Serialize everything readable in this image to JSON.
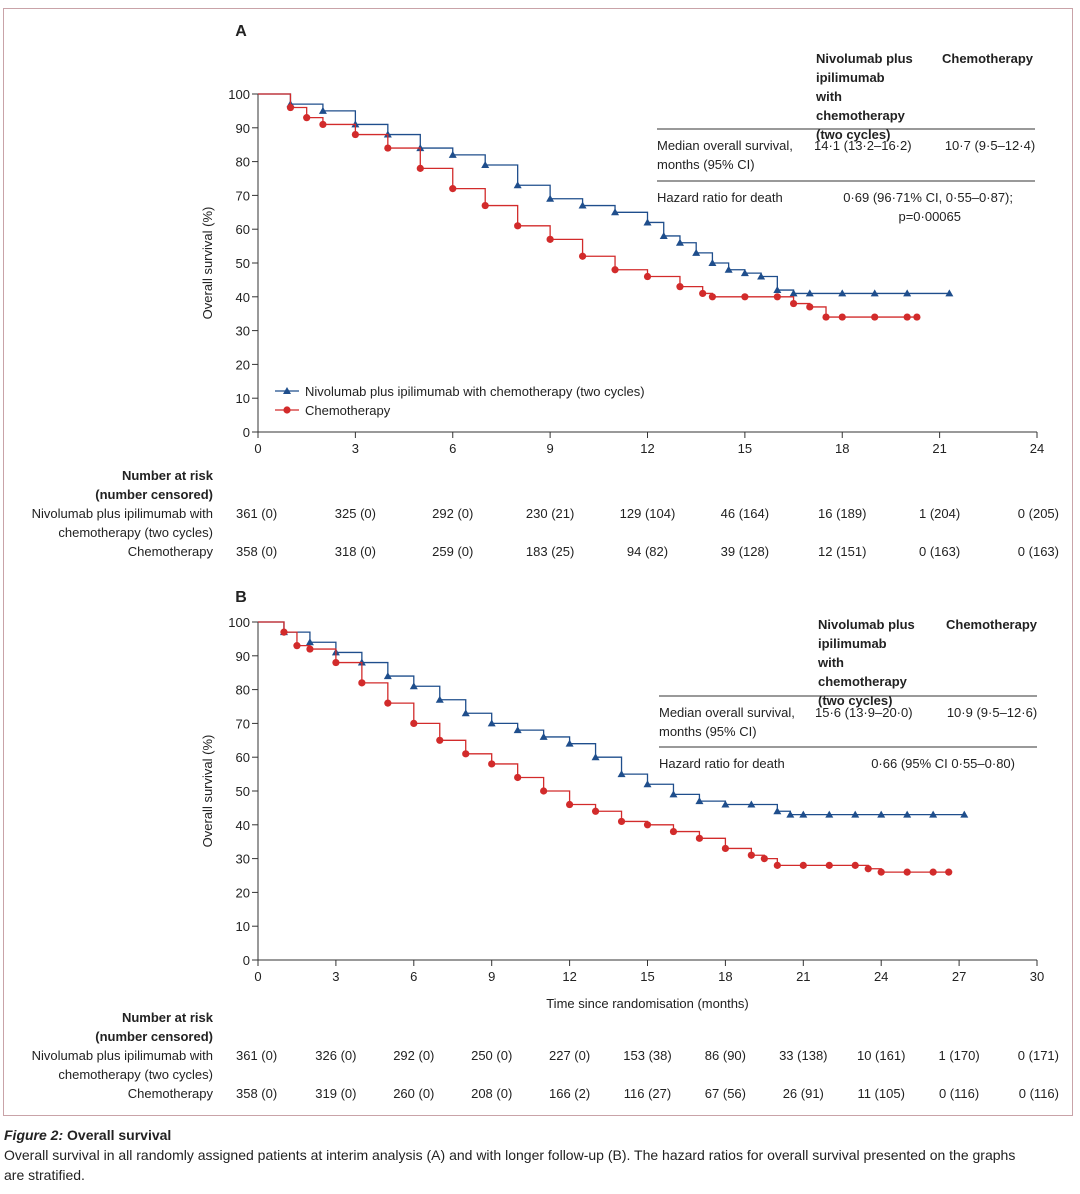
{
  "colors": {
    "nivolumab": "#1f4e8c",
    "chemotherapy": "#d22b2b",
    "frame": "#c9a3a8",
    "axis": "#333333"
  },
  "risk_header": {
    "line1": "Number at risk",
    "line2": "(number censored)"
  },
  "risk_labels": {
    "nivo_line1": "Nivolumab plus ipilimumab with",
    "nivo_line2": "chemotherapy (two cycles)",
    "chemo": "Chemotherapy"
  },
  "caption": {
    "fig_label": "Figure 2:",
    "title": "Overall survival",
    "text_line1": "Overall survival in all randomly assigned patients at interim analysis (A) and with longer follow-up (B). The hazard ratios for overall survival presented on the graphs",
    "text_line2": "are stratified."
  },
  "chart_data": [
    {
      "type": "line",
      "panel": "A",
      "title": "",
      "xlabel": "",
      "ylabel": "Overall survival (%)",
      "xlim": [
        0,
        24
      ],
      "ylim": [
        0,
        100
      ],
      "xticks": [
        0,
        3,
        6,
        9,
        12,
        15,
        18,
        21,
        24
      ],
      "yticks": [
        0,
        10,
        20,
        30,
        40,
        50,
        60,
        70,
        80,
        90,
        100
      ],
      "legend": [
        "Nivolumab plus ipilimumab with chemotherapy (two cycles)",
        "Chemotherapy"
      ],
      "series": [
        {
          "name": "Nivolumab plus ipilimumab with chemotherapy (two cycles)",
          "marker": "triangle",
          "x": [
            0,
            1,
            2,
            3,
            4,
            5,
            6,
            7,
            8,
            9,
            10,
            11,
            12,
            12.5,
            13,
            13.5,
            14,
            14.5,
            15,
            15.5,
            16,
            16.5,
            17,
            18,
            19,
            20,
            21.3
          ],
          "y": [
            100,
            97,
            95,
            91,
            88,
            84,
            82,
            79,
            73,
            69,
            67,
            65,
            62,
            58,
            56,
            53,
            50,
            48,
            47,
            46,
            42,
            41,
            41,
            41,
            41,
            41,
            41
          ]
        },
        {
          "name": "Chemotherapy",
          "marker": "circle",
          "x": [
            0,
            1,
            1.5,
            2,
            3,
            4,
            5,
            6,
            7,
            8,
            9,
            10,
            11,
            12,
            13,
            13.7,
            14,
            15,
            16,
            16.5,
            17,
            17.5,
            18,
            19,
            20,
            20.3
          ],
          "y": [
            100,
            96,
            93,
            91,
            88,
            84,
            78,
            72,
            67,
            61,
            57,
            52,
            48,
            46,
            43,
            41,
            40,
            40,
            40,
            38,
            37,
            34,
            34,
            34,
            34,
            34
          ]
        }
      ],
      "table": {
        "header_col1": "Nivolumab plus ipilimumab with chemotherapy (two cycles)",
        "header_col2": "Chemotherapy",
        "median_label": "Median overall survival, months (95% CI)",
        "median_col1": "14·1 (13·2–16·2)",
        "median_col2": "10·7 (9·5–12·4)",
        "hr_label": "Hazard ratio for death",
        "hr_value_line1": "0·69 (96·71% CI, 0·55–0·87);",
        "hr_value_line2": "p=0·00065"
      },
      "risk": {
        "times": [
          0,
          3,
          6,
          9,
          12,
          15,
          18,
          21,
          24
        ],
        "nivo": [
          "361 (0)",
          "325 (0)",
          "292 (0)",
          "230 (21)",
          "129 (104)",
          "46 (164)",
          "16 (189)",
          "1 (204)",
          "0 (205)"
        ],
        "chemo": [
          "358 (0)",
          "318 (0)",
          "259 (0)",
          "183 (25)",
          "94 (82)",
          "39 (128)",
          "12 (151)",
          "0 (163)",
          "0 (163)"
        ]
      }
    },
    {
      "type": "line",
      "panel": "B",
      "title": "",
      "xlabel": "Time since randomisation (months)",
      "ylabel": "Overall survival (%)",
      "xlim": [
        0,
        30
      ],
      "ylim": [
        0,
        100
      ],
      "xticks": [
        0,
        3,
        6,
        9,
        12,
        15,
        18,
        21,
        24,
        27,
        30
      ],
      "yticks": [
        0,
        10,
        20,
        30,
        40,
        50,
        60,
        70,
        80,
        90,
        100
      ],
      "series": [
        {
          "name": "Nivolumab plus ipilimumab with chemotherapy (two cycles)",
          "marker": "triangle",
          "x": [
            0,
            1,
            2,
            3,
            4,
            5,
            6,
            7,
            8,
            9,
            10,
            11,
            12,
            13,
            14,
            15,
            16,
            17,
            18,
            19,
            20,
            20.5,
            21,
            22,
            23,
            24,
            25,
            26,
            27.2
          ],
          "y": [
            100,
            97,
            94,
            91,
            88,
            84,
            81,
            77,
            73,
            70,
            68,
            66,
            64,
            60,
            55,
            52,
            49,
            47,
            46,
            46,
            44,
            43,
            43,
            43,
            43,
            43,
            43,
            43,
            43
          ]
        },
        {
          "name": "Chemotherapy",
          "marker": "circle",
          "x": [
            0,
            1,
            1.5,
            2,
            3,
            4,
            5,
            6,
            7,
            8,
            9,
            10,
            11,
            12,
            13,
            14,
            15,
            16,
            17,
            18,
            19,
            19.5,
            20,
            21,
            22,
            23,
            23.5,
            24,
            25,
            26,
            26.6
          ],
          "y": [
            100,
            97,
            93,
            92,
            88,
            82,
            76,
            70,
            65,
            61,
            58,
            54,
            50,
            46,
            44,
            41,
            40,
            38,
            36,
            33,
            31,
            30,
            28,
            28,
            28,
            28,
            27,
            26,
            26,
            26,
            26
          ]
        }
      ],
      "table": {
        "header_col1": "Nivolumab plus ipilimumab with chemotherapy (two cycles)",
        "header_col2": "Chemotherapy",
        "median_label": "Median overall survival, months (95% CI)",
        "median_col1": "15·6 (13·9–20·0)",
        "median_col2": "10·9 (9·5–12·6)",
        "hr_label": "Hazard ratio for death",
        "hr_value_line1": "0·66 (95% CI 0·55–0·80)",
        "hr_value_line2": ""
      },
      "risk": {
        "times": [
          0,
          3,
          6,
          9,
          12,
          15,
          18,
          21,
          24,
          27,
          30
        ],
        "nivo": [
          "361 (0)",
          "326 (0)",
          "292 (0)",
          "250 (0)",
          "227 (0)",
          "153 (38)",
          "86 (90)",
          "33 (138)",
          "10 (161)",
          "1 (170)",
          "0 (171)"
        ],
        "chemo": [
          "358 (0)",
          "319 (0)",
          "260 (0)",
          "208 (0)",
          "166 (2)",
          "116 (27)",
          "67 (56)",
          "26 (91)",
          "11 (105)",
          "0 (116)",
          "0 (116)"
        ]
      }
    }
  ]
}
